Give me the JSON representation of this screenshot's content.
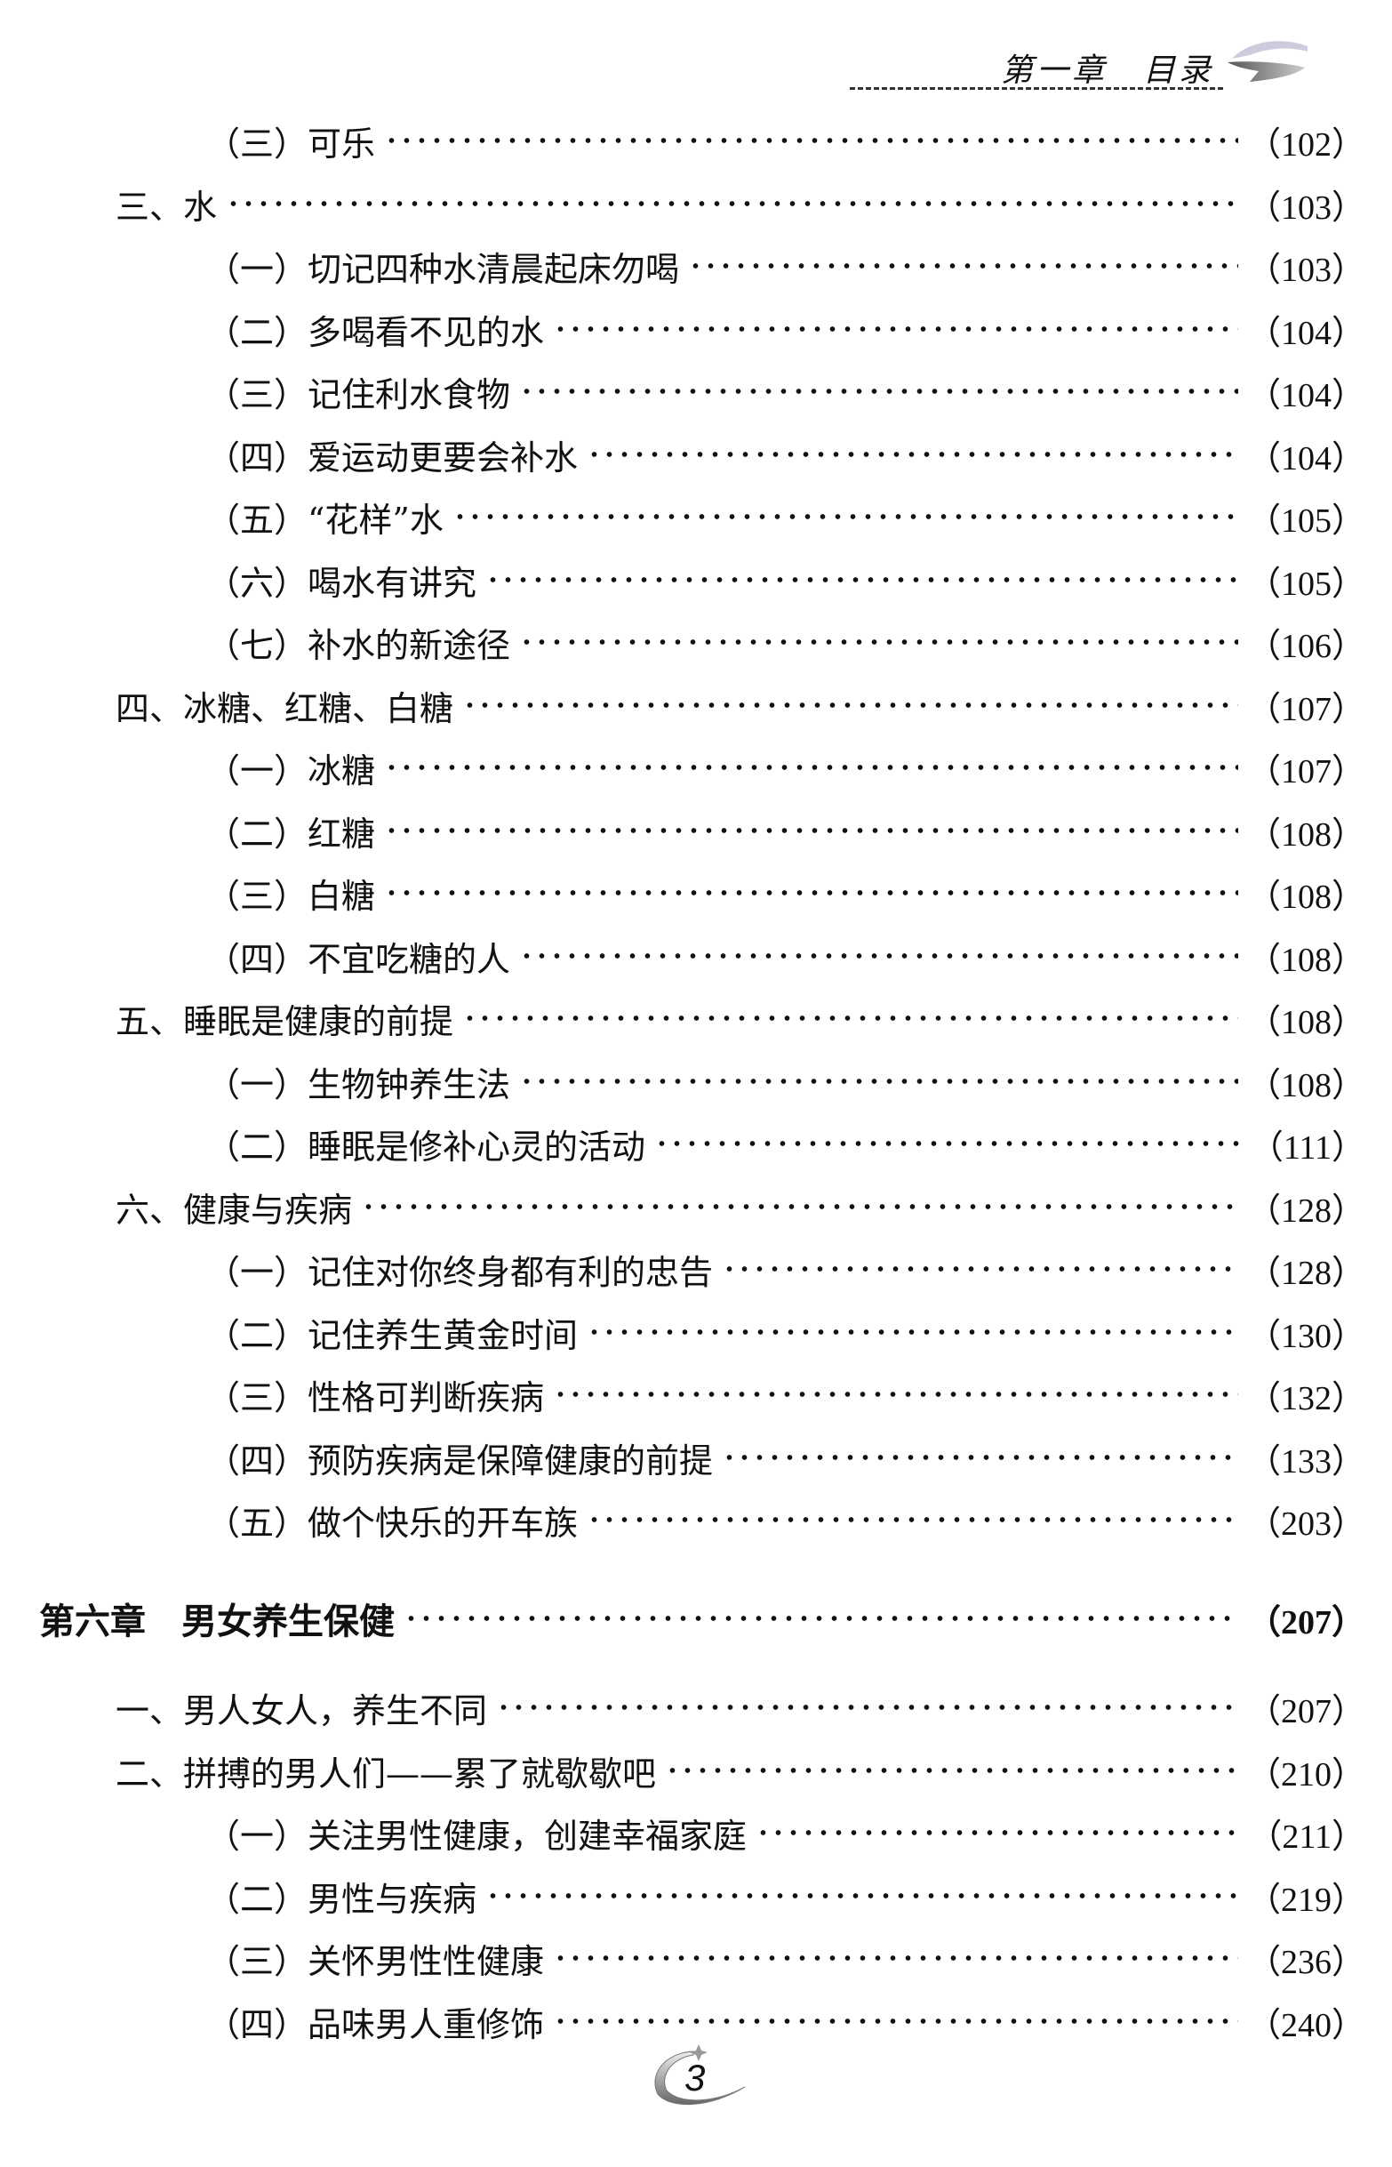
{
  "header": {
    "title": "第一章　目录",
    "logo_icon": "swoosh-arrow-icon"
  },
  "entries": [
    {
      "level": 2,
      "label": "（三）可乐",
      "page": "（102）"
    },
    {
      "level": 1,
      "label": "三、水",
      "page": "（103）"
    },
    {
      "level": 2,
      "label": "（一）切记四种水清晨起床勿喝",
      "page": "（103）"
    },
    {
      "level": 2,
      "label": "（二）多喝看不见的水",
      "page": "（104）"
    },
    {
      "level": 2,
      "label": "（三）记住利水食物",
      "page": "（104）"
    },
    {
      "level": 2,
      "label": "（四）爱运动更要会补水",
      "page": "（104）"
    },
    {
      "level": 2,
      "label": "（五）“花样”水",
      "page": "（105）"
    },
    {
      "level": 2,
      "label": "（六）喝水有讲究",
      "page": "（105）"
    },
    {
      "level": 2,
      "label": "（七）补水的新途径",
      "page": "（106）"
    },
    {
      "level": 1,
      "label": "四、冰糖、红糖、白糖",
      "page": "（107）"
    },
    {
      "level": 2,
      "label": "（一）冰糖",
      "page": "（107）"
    },
    {
      "level": 2,
      "label": "（二）红糖",
      "page": "（108）"
    },
    {
      "level": 2,
      "label": "（三）白糖",
      "page": "（108）"
    },
    {
      "level": 2,
      "label": "（四）不宜吃糖的人",
      "page": "（108）"
    },
    {
      "level": 1,
      "label": "五、睡眠是健康的前提",
      "page": "（108）"
    },
    {
      "level": 2,
      "label": "（一）生物钟养生法",
      "page": "（108）"
    },
    {
      "level": 2,
      "label": "（二）睡眠是修补心灵的活动",
      "page": "（111）"
    },
    {
      "level": 1,
      "label": "六、健康与疾病",
      "page": "（128）"
    },
    {
      "level": 2,
      "label": "（一）记住对你终身都有利的忠告",
      "page": "（128）"
    },
    {
      "level": 2,
      "label": "（二）记住养生黄金时间",
      "page": "（130）"
    },
    {
      "level": 2,
      "label": "（三）性格可判断疾病",
      "page": "（132）"
    },
    {
      "level": 2,
      "label": "（四）预防疾病是保障健康的前提",
      "page": "（133）"
    },
    {
      "level": 2,
      "label": "（五）做个快乐的开车族",
      "page": "（203）"
    },
    {
      "level": 0,
      "label": "第六章　男女养生保健",
      "page": "（207）"
    },
    {
      "level": 1,
      "label": "一、男人女人，养生不同",
      "page": "（207）"
    },
    {
      "level": 1,
      "label": "二、拼搏的男人们——累了就歇歇吧",
      "page": "（210）"
    },
    {
      "level": 2,
      "label": "（一）关注男性健康，创建幸福家庭",
      "page": "（211）"
    },
    {
      "level": 2,
      "label": "（二）男性与疾病",
      "page": "（219）"
    },
    {
      "level": 2,
      "label": "（三）关怀男性性健康",
      "page": "（236）"
    },
    {
      "level": 2,
      "label": "（四）品味男人重修饰",
      "page": "（240）"
    }
  ],
  "footer": {
    "page_number": "3",
    "ornament_icon": "crescent-star-icon"
  }
}
